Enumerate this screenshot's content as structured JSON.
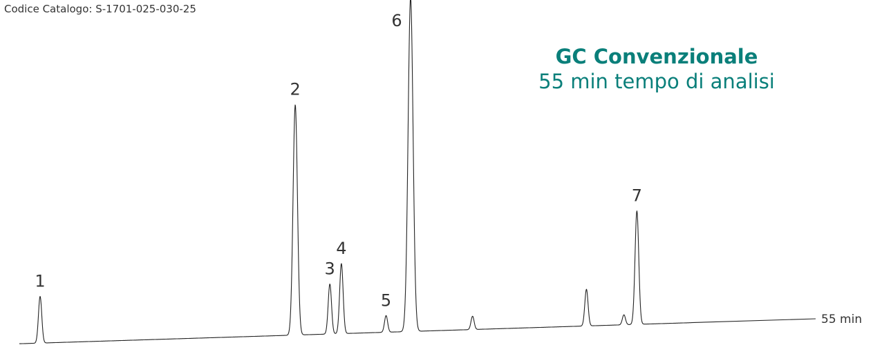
{
  "catalog_code": "Codice Catalogo: S-1701-025-030-25",
  "headline": {
    "title": "GC Convenzionale",
    "subtitle": "55 min tempo di analisi"
  },
  "colors": {
    "accent": "#0a7f7a",
    "trace": "#222222",
    "text": "#333333"
  },
  "chart_data": {
    "type": "line",
    "title": "GC Convenzionale",
    "subtitle": "55 min tempo di analisi",
    "xlabel": "",
    "ylabel": "",
    "x_unit": "min",
    "x_range": [
      0,
      55
    ],
    "axis_end_label": "55 min",
    "grid": false,
    "peaks": [
      {
        "label": "1",
        "time": 1.2,
        "relative_height": 0.14
      },
      {
        "label": "2",
        "time": 18.9,
        "relative_height": 0.69
      },
      {
        "label": "3",
        "time": 21.3,
        "relative_height": 0.15
      },
      {
        "label": "4",
        "time": 22.1,
        "relative_height": 0.21
      },
      {
        "label": "5",
        "time": 25.2,
        "relative_height": 0.05
      },
      {
        "label": "6",
        "time": 26.9,
        "relative_height": 1.0
      },
      {
        "label": "",
        "time": 31.2,
        "relative_height": 0.04
      },
      {
        "label": "",
        "time": 39.1,
        "relative_height": 0.11
      },
      {
        "label": "",
        "time": 41.7,
        "relative_height": 0.03
      },
      {
        "label": "7",
        "time": 42.6,
        "relative_height": 0.34
      }
    ]
  }
}
